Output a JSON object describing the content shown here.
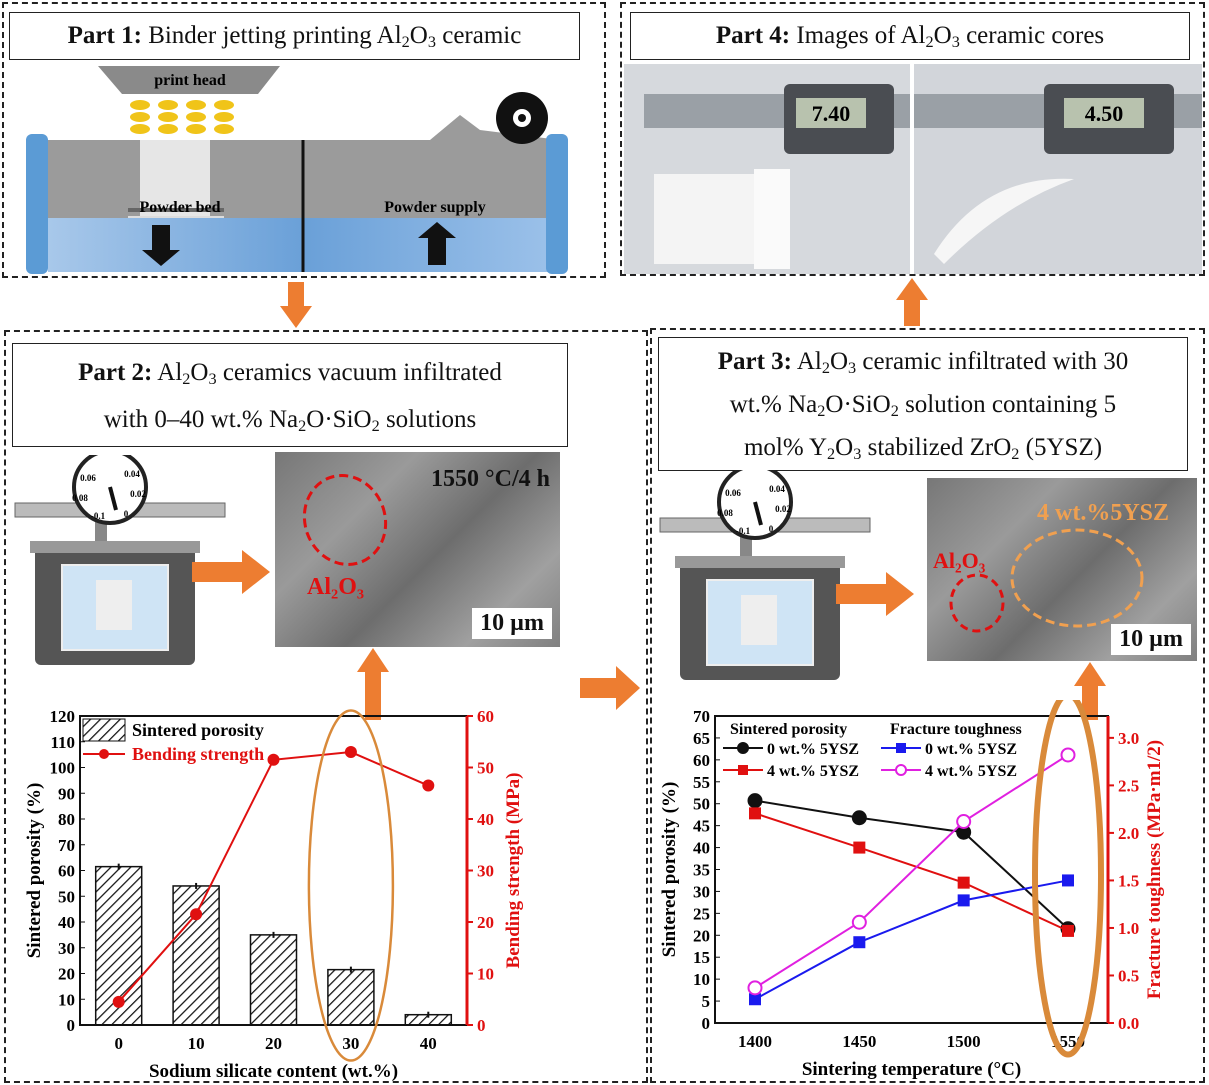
{
  "part1": {
    "label": "Part 1:",
    "title": [
      {
        "t": " Binder jetting printing Al"
      },
      {
        "t": "2",
        "sub": true
      },
      {
        "t": "O"
      },
      {
        "t": "3",
        "sub": true
      },
      {
        "t": " ceramic"
      }
    ],
    "print_head": "print head",
    "powder_bed": "Powder bed",
    "powder_supply": "Powder supply"
  },
  "part4": {
    "label": "Part 4:",
    "title": [
      {
        "t": " Images of Al"
      },
      {
        "t": "2",
        "sub": true
      },
      {
        "t": "O"
      },
      {
        "t": "3",
        "sub": true
      },
      {
        "t": " ceramic cores"
      }
    ],
    "caliper_readouts": [
      "7.40",
      "4.50"
    ]
  },
  "part2": {
    "label": "Part 2:",
    "title_lines": [
      [
        {
          "t": " Al"
        },
        {
          "t": "2",
          "sub": true
        },
        {
          "t": "O"
        },
        {
          "t": "3",
          "sub": true
        },
        {
          "t": " ceramics vacuum infiltrated"
        }
      ],
      [
        {
          "t": "with 0–40 wt.% Na"
        },
        {
          "t": "2",
          "sub": true
        },
        {
          "t": "O·SiO"
        },
        {
          "t": "2",
          "sub": true
        },
        {
          "t": " solutions"
        }
      ]
    ],
    "sem_condition": "1550 °C/4 h",
    "sem_label": "Al₂O₃",
    "scale_bar": "10 µm",
    "gauge_ticks": [
      "0.06",
      "0.04",
      "0.08",
      "0.02",
      "-0.1",
      "0"
    ]
  },
  "part3": {
    "label": "Part 3:",
    "title_lines": [
      [
        {
          "t": " Al"
        },
        {
          "t": "2",
          "sub": true
        },
        {
          "t": "O"
        },
        {
          "t": "3",
          "sub": true
        },
        {
          "t": " ceramic infiltrated with 30"
        }
      ],
      [
        {
          "t": "wt.% Na"
        },
        {
          "t": "2",
          "sub": true
        },
        {
          "t": "O·SiO"
        },
        {
          "t": "2",
          "sub": true
        },
        {
          "t": " solution containing 5"
        }
      ],
      [
        {
          "t": "mol% Y"
        },
        {
          "t": "2",
          "sub": true
        },
        {
          "t": "O"
        },
        {
          "t": "3",
          "sub": true
        },
        {
          "t": " stabilized ZrO"
        },
        {
          "t": "2",
          "sub": true
        },
        {
          "t": " (5YSZ)"
        }
      ]
    ],
    "sem_label_5ysz": "4 wt.%5YSZ",
    "sem_label_al2o3": "Al₂O₃",
    "scale_bar": "10 µm",
    "gauge_ticks": [
      "0.06",
      "0.04",
      "0.08",
      "0.02",
      "-0.1",
      "0"
    ]
  },
  "colors": {
    "accent_orange": "#ed7d31",
    "red": "#e01010",
    "blue": "#1a1aee",
    "magenta": "#e020e0",
    "black": "#111111"
  },
  "chart_data": [
    {
      "type": "bar",
      "title": "",
      "categories": [
        "0",
        "10",
        "20",
        "30",
        "40"
      ],
      "xlabel": "Sodium silicate content (wt.%)",
      "ylabel": "Sintered porosity (%)",
      "y2label": "Bending strength (MPa)",
      "ylim": [
        0,
        120
      ],
      "y2lim": [
        0,
        60
      ],
      "yticks": [
        0,
        10,
        20,
        30,
        40,
        50,
        60,
        70,
        80,
        90,
        100,
        110,
        120
      ],
      "y2ticks": [
        0,
        10,
        20,
        30,
        40,
        50,
        60
      ],
      "series": [
        {
          "name": "Sintered porosity",
          "kind": "bar",
          "axis": "left",
          "values": [
            61.5,
            54,
            35,
            21.5,
            4
          ]
        },
        {
          "name": "Bending strength",
          "kind": "line",
          "axis": "right",
          "values": [
            4.5,
            21.5,
            51.5,
            53,
            46.5
          ]
        }
      ],
      "highlight": "30",
      "legend": "top-left"
    },
    {
      "type": "line",
      "title": "",
      "x": [
        1400,
        1450,
        1500,
        1550
      ],
      "xlabel": "Sintering temperature (°C)",
      "ylabel": "Sintered porosity (%)",
      "y2label": "Fracture toughness (MPa·m1/2)",
      "ylim": [
        0,
        70
      ],
      "y2lim": [
        0,
        3.23
      ],
      "yticks": [
        0,
        5,
        10,
        15,
        20,
        25,
        30,
        35,
        40,
        45,
        50,
        55,
        60,
        65,
        70
      ],
      "y2ticks": [
        "0.0",
        "0.5",
        "1.0",
        "1.5",
        "2.0",
        "2.5",
        "3.0"
      ],
      "legend_groups": [
        "Sintered porosity",
        "Fracture toughness"
      ],
      "series": [
        {
          "name": "0 wt.% 5YSZ",
          "group": "Sintered porosity",
          "axis": "left",
          "color": "#111111",
          "marker": "circle",
          "values": [
            50.7,
            46.8,
            43.5,
            21.5
          ]
        },
        {
          "name": "4 wt.% 5YSZ",
          "group": "Sintered porosity",
          "axis": "left",
          "color": "#e01010",
          "marker": "square",
          "values": [
            47.8,
            40,
            32,
            21
          ]
        },
        {
          "name": "0 wt.% 5YSZ",
          "group": "Fracture toughness",
          "axis": "right",
          "color": "#1a1aee",
          "marker": "square",
          "values": [
            0.25,
            0.85,
            1.29,
            1.5
          ]
        },
        {
          "name": "4 wt.% 5YSZ",
          "group": "Fracture toughness",
          "axis": "right",
          "color": "#e020e0",
          "marker": "open-circle",
          "values": [
            0.37,
            1.06,
            2.12,
            2.82
          ]
        }
      ],
      "highlight": "1550",
      "legend": "top"
    }
  ]
}
